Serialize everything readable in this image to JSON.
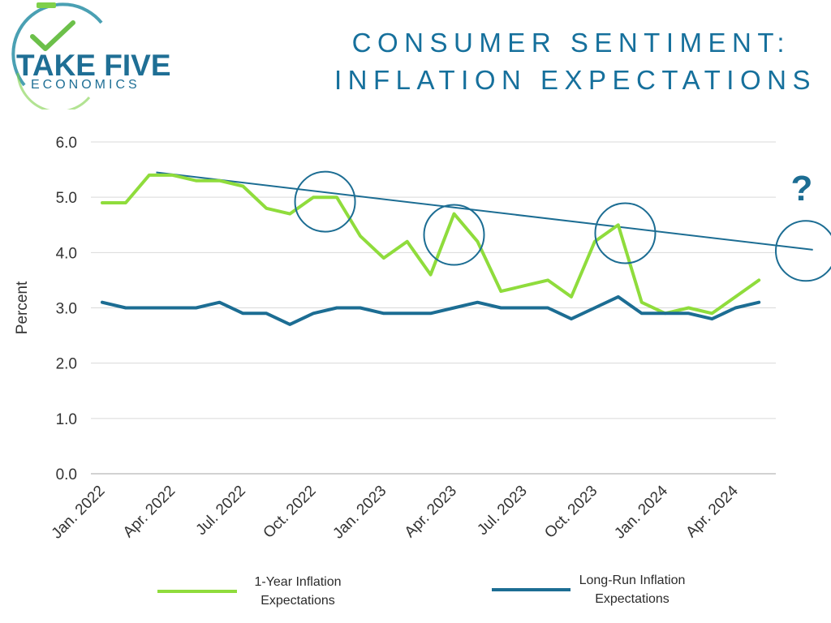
{
  "brand": {
    "line1": "TAKE FIVE",
    "line2": "ECONOMICS"
  },
  "title": {
    "line1": "CONSUMER SENTIMENT:",
    "line2": "INFLATION EXPECTATIONS"
  },
  "colors": {
    "green": "#8fdc3c",
    "blue": "#1c6d93",
    "title": "#16709c",
    "grid": "#d9d9d9"
  },
  "chart_data": {
    "type": "line",
    "ylabel": "Percent",
    "ylim": [
      0,
      6
    ],
    "yticks": [
      "0.0",
      "1.0",
      "2.0",
      "3.0",
      "4.0",
      "5.0",
      "6.0"
    ],
    "xticklabels": [
      "Jan. 2022",
      "Apr. 2022",
      "Jul. 2022",
      "Oct. 2022",
      "Jan. 2023",
      "Apr. 2023",
      "Jul. 2023",
      "Oct. 2023",
      "Jan. 2024",
      "Apr. 2024"
    ],
    "x_months": 29,
    "series": [
      {
        "name": "1-Year Inflation Expectations",
        "legend_lines": [
          "1-Year Inflation",
          "Expectations"
        ],
        "color": "#8fdc3c",
        "values": [
          4.9,
          4.9,
          5.4,
          5.4,
          5.3,
          5.3,
          5.2,
          4.8,
          4.7,
          5.0,
          5.0,
          4.3,
          3.9,
          4.2,
          3.6,
          4.7,
          4.2,
          3.3,
          3.4,
          3.5,
          3.2,
          4.2,
          4.5,
          3.1,
          2.9,
          3.0,
          2.9,
          3.2,
          3.5
        ]
      },
      {
        "name": "Long-Run Inflation Expectations",
        "legend_lines": [
          "Long-Run Inflation",
          "Expectations"
        ],
        "color": "#1c6d93",
        "values": [
          3.1,
          3.0,
          3.0,
          3.0,
          3.0,
          3.1,
          2.9,
          2.9,
          2.7,
          2.9,
          3.0,
          3.0,
          2.9,
          2.9,
          2.9,
          3.0,
          3.1,
          3.0,
          3.0,
          3.0,
          2.8,
          3.0,
          3.2,
          2.9,
          2.9,
          2.9,
          2.8,
          3.0,
          3.1
        ]
      }
    ],
    "trendline": {
      "start": {
        "month": 2.3,
        "value": 5.45
      },
      "end": {
        "month": 30.3,
        "value": 4.05
      }
    },
    "annotations": {
      "circles": [
        {
          "month": 9.5,
          "value": 4.92
        },
        {
          "month": 15.0,
          "value": 4.32
        },
        {
          "month": 22.3,
          "value": 4.35
        },
        {
          "month": 30.0,
          "value": 4.03
        }
      ],
      "question_mark": "?"
    }
  }
}
